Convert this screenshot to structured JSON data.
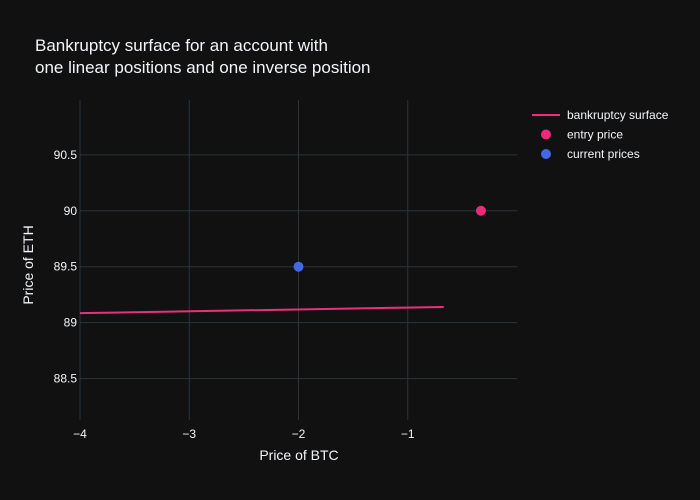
{
  "chart_data": {
    "type": "scatter",
    "title_lines": [
      "Bankruptcy surface for an account with",
      "one linear positions and one inverse position"
    ],
    "xlabel": "Price of BTC",
    "ylabel": "Price of ETH",
    "xlim": [
      -4,
      -0.0
    ],
    "ylim": [
      88.13,
      90.99
    ],
    "xticks": [
      {
        "value": -4,
        "label": "−4"
      },
      {
        "value": -3,
        "label": "−3"
      },
      {
        "value": -2,
        "label": "−2"
      },
      {
        "value": -1,
        "label": "−1"
      }
    ],
    "yticks": [
      {
        "value": 88.5,
        "label": "88.5"
      },
      {
        "value": 89,
        "label": "89"
      },
      {
        "value": 89.5,
        "label": "89.5"
      },
      {
        "value": 90,
        "label": "90"
      },
      {
        "value": 90.5,
        "label": "90.5"
      }
    ],
    "series": [
      {
        "name": "bankruptcy surface",
        "mode": "line",
        "color": "#e8317a",
        "x": [
          -4,
          -0.67
        ],
        "y": [
          89.085,
          89.14
        ]
      },
      {
        "name": "entry price",
        "mode": "markers",
        "color": "#f0287a",
        "x": [
          -0.33
        ],
        "y": [
          90.0
        ]
      },
      {
        "name": "current prices",
        "mode": "markers",
        "color": "#4169e1",
        "x": [
          -2.0
        ],
        "y": [
          89.5
        ]
      }
    ],
    "legend_position": "top-right",
    "grid": true
  },
  "style": {
    "background": "#111111",
    "grid_color": "#283442",
    "text_color": "#f2f5fa"
  }
}
